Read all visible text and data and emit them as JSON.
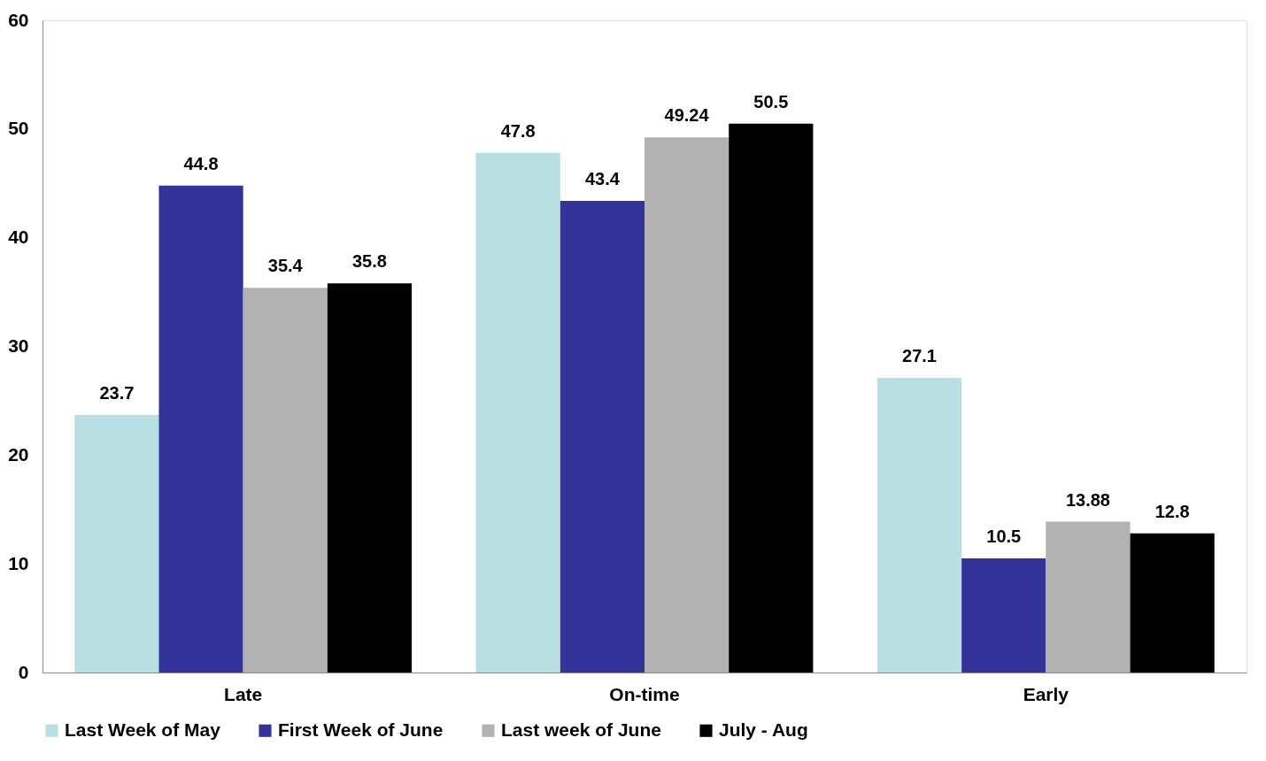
{
  "chart_data": {
    "type": "bar",
    "categories": [
      "Late",
      "On-time",
      "Early"
    ],
    "series": [
      {
        "name": "Last Week of May",
        "color": "#b8e0e3",
        "values": [
          23.7,
          47.8,
          27.1
        ]
      },
      {
        "name": "First Week of June",
        "color": "#343399",
        "values": [
          44.8,
          43.4,
          10.5
        ]
      },
      {
        "name": "Last week of June",
        "color": "#b2b2b2",
        "values": [
          35.4,
          49.24,
          13.88
        ]
      },
      {
        "name": "July - Aug",
        "color": "#000000",
        "values": [
          35.8,
          50.5,
          12.8
        ]
      }
    ],
    "ylim": [
      0,
      60
    ],
    "yticks": [
      0,
      10,
      20,
      30,
      40,
      50,
      60
    ],
    "grid": false,
    "legend": "bottom",
    "data_labels": true
  }
}
